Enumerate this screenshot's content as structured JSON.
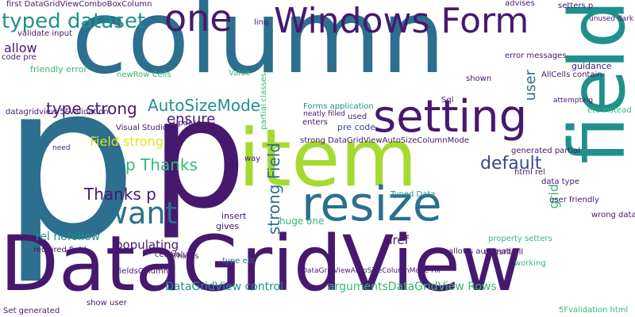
{
  "palette": {
    "purple": "#46196f",
    "indigo": "#3b4a8c",
    "blue": "#2c6f8e",
    "teal": "#21908d",
    "green": "#35b779",
    "lime": "#a5da31",
    "yellow": "#e3e41a"
  },
  "words": [
    {
      "text": "p",
      "color": "blue"
    },
    {
      "text": "DataGridView",
      "color": "purple"
    },
    {
      "text": "column",
      "color": "blue"
    },
    {
      "text": "item",
      "color": "lime"
    },
    {
      "text": "p",
      "color": "purple"
    },
    {
      "text": "field",
      "color": "teal"
    },
    {
      "text": "resize",
      "color": "blue"
    },
    {
      "text": "Windows Form",
      "color": "purple"
    },
    {
      "text": "setting",
      "color": "purple"
    },
    {
      "text": "one",
      "color": "purple"
    },
    {
      "text": "want",
      "color": "blue"
    },
    {
      "text": "typed dataset",
      "color": "teal"
    },
    {
      "text": "AutoSizeMode",
      "color": "teal"
    },
    {
      "text": "type strong",
      "color": "purple"
    },
    {
      "text": "Thanks p",
      "color": "purple"
    },
    {
      "text": "p Thanks",
      "color": "green"
    },
    {
      "text": "default",
      "color": "indigo"
    },
    {
      "text": "strong Field",
      "color": "blue"
    },
    {
      "text": "Field strong",
      "color": "yellow"
    },
    {
      "text": "allow",
      "color": "purple"
    },
    {
      "text": "ensure",
      "color": "purple"
    },
    {
      "text": "user",
      "color": "blue"
    },
    {
      "text": "grid",
      "color": "green"
    },
    {
      "text": "href",
      "color": "purple"
    },
    {
      "text": "populating",
      "color": "purple"
    },
    {
      "text": "rel nofollow",
      "color": "teal"
    },
    {
      "text": "argumentsDataGridView Rows",
      "color": "green"
    },
    {
      "text": "DataGridView control",
      "color": "teal"
    },
    {
      "text": "datagridview 5Fvalidation",
      "color": "purple"
    },
    {
      "text": "strong DataGridViewAutoSizeColumnMode",
      "color": "purple"
    },
    {
      "text": "Visual Studio",
      "color": "purple"
    },
    {
      "text": "first DataGridViewComboBoxColumn",
      "color": "purple"
    },
    {
      "text": "guidance",
      "color": "purple"
    },
    {
      "text": "data type",
      "color": "purple"
    },
    {
      "text": "user friendly",
      "color": "purple"
    },
    {
      "text": "wrong data",
      "color": "purple"
    },
    {
      "text": "property setters",
      "color": "green"
    },
    {
      "text": "doesnt fill",
      "color": "purple"
    },
    {
      "text": "working",
      "color": "green"
    },
    {
      "text": "Typed Data",
      "color": "teal"
    },
    {
      "text": "generated partial",
      "color": "purple"
    },
    {
      "text": "Sql",
      "color": "purple"
    },
    {
      "text": "Forms application",
      "color": "teal"
    },
    {
      "text": "neatly filled",
      "color": "purple"
    },
    {
      "text": "pre code",
      "color": "indigo"
    },
    {
      "text": "html rel",
      "color": "purple"
    },
    {
      "text": "linq",
      "color": "purple"
    },
    {
      "text": "error messages",
      "color": "purple"
    },
    {
      "text": "advises",
      "color": "purple"
    },
    {
      "text": "setters p",
      "color": "purple"
    },
    {
      "text": "validate input",
      "color": "purple"
    },
    {
      "text": "friendly error",
      "color": "green"
    },
    {
      "text": "newRow Cells",
      "color": "green"
    },
    {
      "text": "cell Value",
      "color": "purple"
    },
    {
      "text": "required field",
      "color": "purple"
    },
    {
      "text": "type etc",
      "color": "blue"
    },
    {
      "text": "fieldsColumn",
      "color": "purple"
    },
    {
      "text": "show user",
      "color": "purple"
    },
    {
      "text": "Set generated",
      "color": "purple"
    },
    {
      "text": "update",
      "color": "purple"
    },
    {
      "text": "Value",
      "color": "green"
    },
    {
      "text": "insert",
      "color": "purple"
    },
    {
      "text": "gives",
      "color": "purple"
    },
    {
      "text": "huge one",
      "color": "green"
    },
    {
      "text": "used",
      "color": "purple"
    },
    {
      "text": "enters",
      "color": "purple"
    },
    {
      "text": "shown",
      "color": "purple"
    },
    {
      "text": "code pre",
      "color": "purple"
    },
    {
      "text": "allows automatic",
      "color": "purple"
    },
    {
      "text": "etc instead",
      "color": "green"
    },
    {
      "text": "AllCells contain",
      "color": "purple"
    },
    {
      "text": "attempting",
      "color": "purple"
    },
    {
      "text": "unused dark",
      "color": "purple"
    },
    {
      "text": "5Fvalidation html",
      "color": "green"
    },
    {
      "text": "need",
      "color": "purple"
    },
    {
      "text": "way",
      "color": "purple"
    },
    {
      "text": "Thanks",
      "color": "purple"
    },
    {
      "text": "partial classes",
      "color": "green"
    },
    {
      "text": "DataGridViewAutoSizeColumnMode Fill",
      "color": "purple"
    }
  ]
}
